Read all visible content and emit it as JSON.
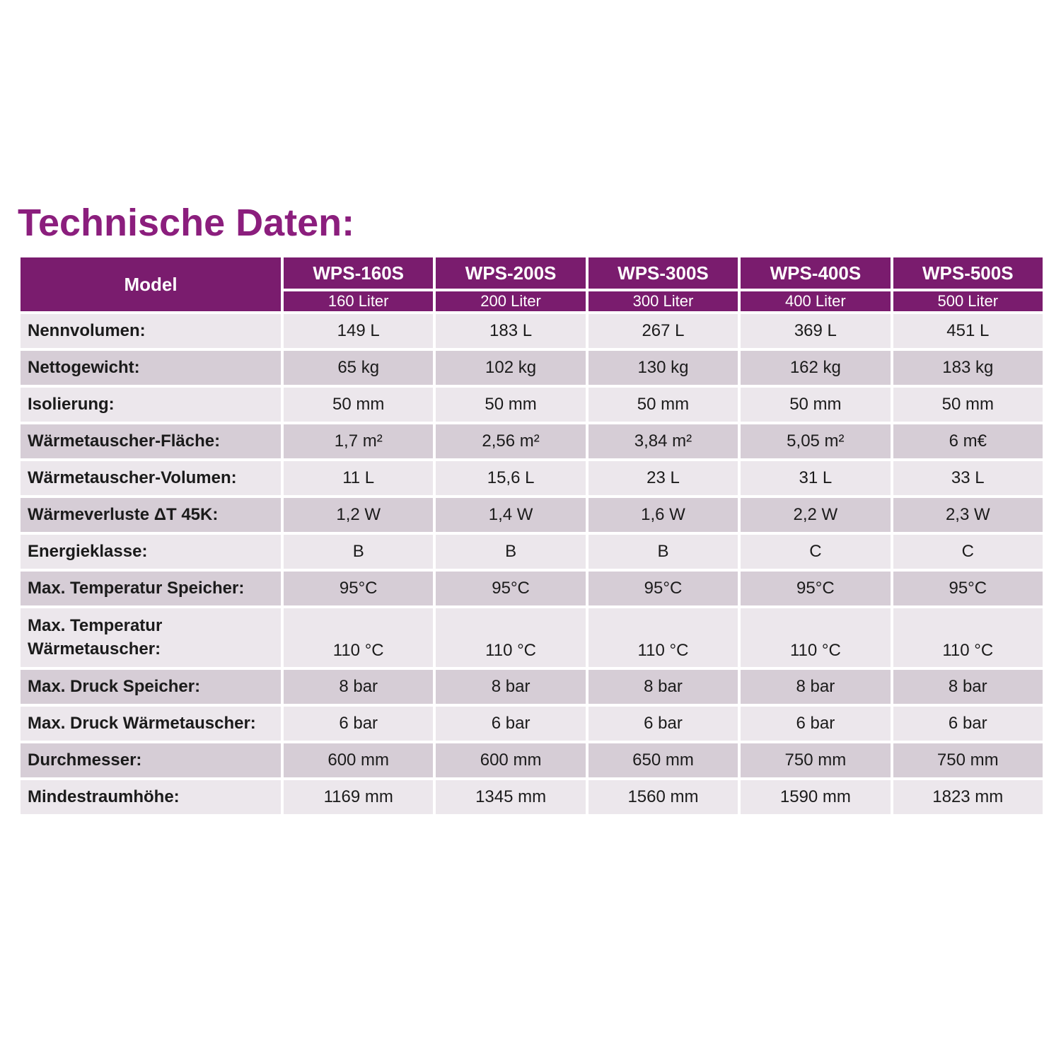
{
  "title": "Technische Daten:",
  "colors": {
    "header_purple": "#7a1c6e",
    "title_purple": "#8b1e7d",
    "row_light": "#ece7ec",
    "row_dark": "#d6cdd6",
    "text_dark": "#1b1b1b"
  },
  "table": {
    "model_header": "Model",
    "models": [
      "WPS-160S",
      "WPS-200S",
      "WPS-300S",
      "WPS-400S",
      "WPS-500S"
    ],
    "capacities": [
      "160 Liter",
      "200 Liter",
      "300 Liter",
      "400 Liter",
      "500 Liter"
    ],
    "rows": [
      {
        "label": "Nennvolumen:",
        "values": [
          "149 L",
          "183 L",
          "267 L",
          "369 L",
          "451 L"
        ]
      },
      {
        "label": "Nettogewicht:",
        "values": [
          "65 kg",
          "102 kg",
          "130 kg",
          "162 kg",
          "183 kg"
        ]
      },
      {
        "label": "Isolierung:",
        "values": [
          "50 mm",
          "50 mm",
          "50 mm",
          "50 mm",
          "50 mm"
        ]
      },
      {
        "label": "Wärmetauscher-Fläche:",
        "values": [
          "1,7 m²",
          "2,56 m²",
          "3,84 m²",
          "5,05 m²",
          "6 m€"
        ]
      },
      {
        "label": "Wärmetauscher-Volumen:",
        "values": [
          "11 L",
          "15,6 L",
          "23 L",
          "31 L",
          "33 L"
        ]
      },
      {
        "label": "Wärmeverluste ΔT 45K:",
        "values": [
          "1,2 W",
          "1,4 W",
          "1,6 W",
          "2,2 W",
          "2,3 W"
        ]
      },
      {
        "label": "Energieklasse:",
        "values": [
          "B",
          "B",
          "B",
          "C",
          "C"
        ]
      },
      {
        "label": "Max. Temperatur Speicher:",
        "values": [
          "95°C",
          "95°C",
          "95°C",
          "95°C",
          "95°C"
        ]
      },
      {
        "label": "Max. Temperatur\nWärmetauscher:",
        "values": [
          "110 °C",
          "110 °C",
          "110 °C",
          "110 °C",
          "110 °C"
        ]
      },
      {
        "label": "Max. Druck Speicher:",
        "values": [
          "8 bar",
          "8 bar",
          "8 bar",
          "8 bar",
          "8 bar"
        ]
      },
      {
        "label": "Max. Druck Wärmetauscher:",
        "values": [
          "6 bar",
          "6 bar",
          "6 bar",
          "6 bar",
          "6 bar"
        ]
      },
      {
        "label": "Durchmesser:",
        "values": [
          "600 mm",
          "600 mm",
          "650 mm",
          "750 mm",
          "750 mm"
        ]
      },
      {
        "label": "Mindestraumhöhe:",
        "values": [
          "1169 mm",
          "1345 mm",
          "1560 mm",
          "1590 mm",
          "1823 mm"
        ]
      }
    ]
  }
}
